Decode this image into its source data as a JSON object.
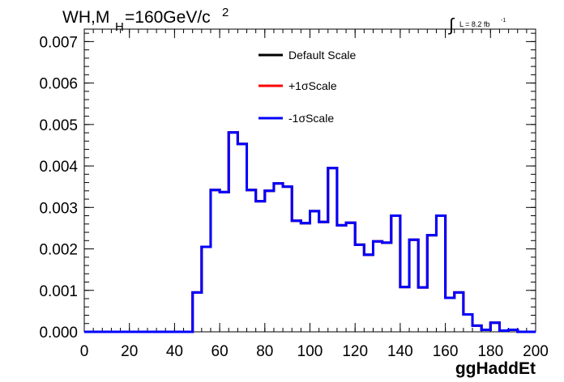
{
  "chart_data": {
    "type": "line",
    "title_main": "WH,M",
    "title_sub": "H",
    "title_rest": "=160GeV/c",
    "title_sup": "2",
    "lumi_label": "L = 8.2 fb",
    "lumi_sup": "-1",
    "xlabel": "ggHaddEt",
    "xlim": [
      0,
      200
    ],
    "ylim": [
      0,
      0.0073
    ],
    "x_ticks": [
      "0",
      "20",
      "40",
      "60",
      "80",
      "100",
      "120",
      "140",
      "160",
      "180",
      "200"
    ],
    "y_ticks": [
      "0.000",
      "0.001",
      "0.002",
      "0.003",
      "0.004",
      "0.005",
      "0.006",
      "0.007"
    ],
    "bin_width": 4,
    "x_start": 0,
    "legend_position": "top-center",
    "series": [
      {
        "name": "Default Scale",
        "color": "#000000"
      },
      {
        "name": "+1σScale",
        "color": "#ff0000"
      },
      {
        "name": "-1σScale",
        "color": "#0000ff"
      }
    ],
    "values": [
      0,
      0,
      0,
      0,
      0,
      0,
      0,
      0,
      0,
      0,
      0,
      0,
      0.00095,
      0.00205,
      0.00342,
      0.00337,
      0.00481,
      0.00453,
      0.00342,
      0.00315,
      0.0034,
      0.00358,
      0.0035,
      0.00268,
      0.00262,
      0.00291,
      0.00265,
      0.00395,
      0.00257,
      0.00263,
      0.0021,
      0.00186,
      0.00218,
      0.00215,
      0.0028,
      0.00108,
      0.00222,
      0.00107,
      0.00233,
      0.0028,
      0.00082,
      0.00095,
      0.00042,
      0.00015,
      5e-05,
      0.00022,
      3e-05,
      5e-05,
      0.0,
      0.0
    ]
  }
}
